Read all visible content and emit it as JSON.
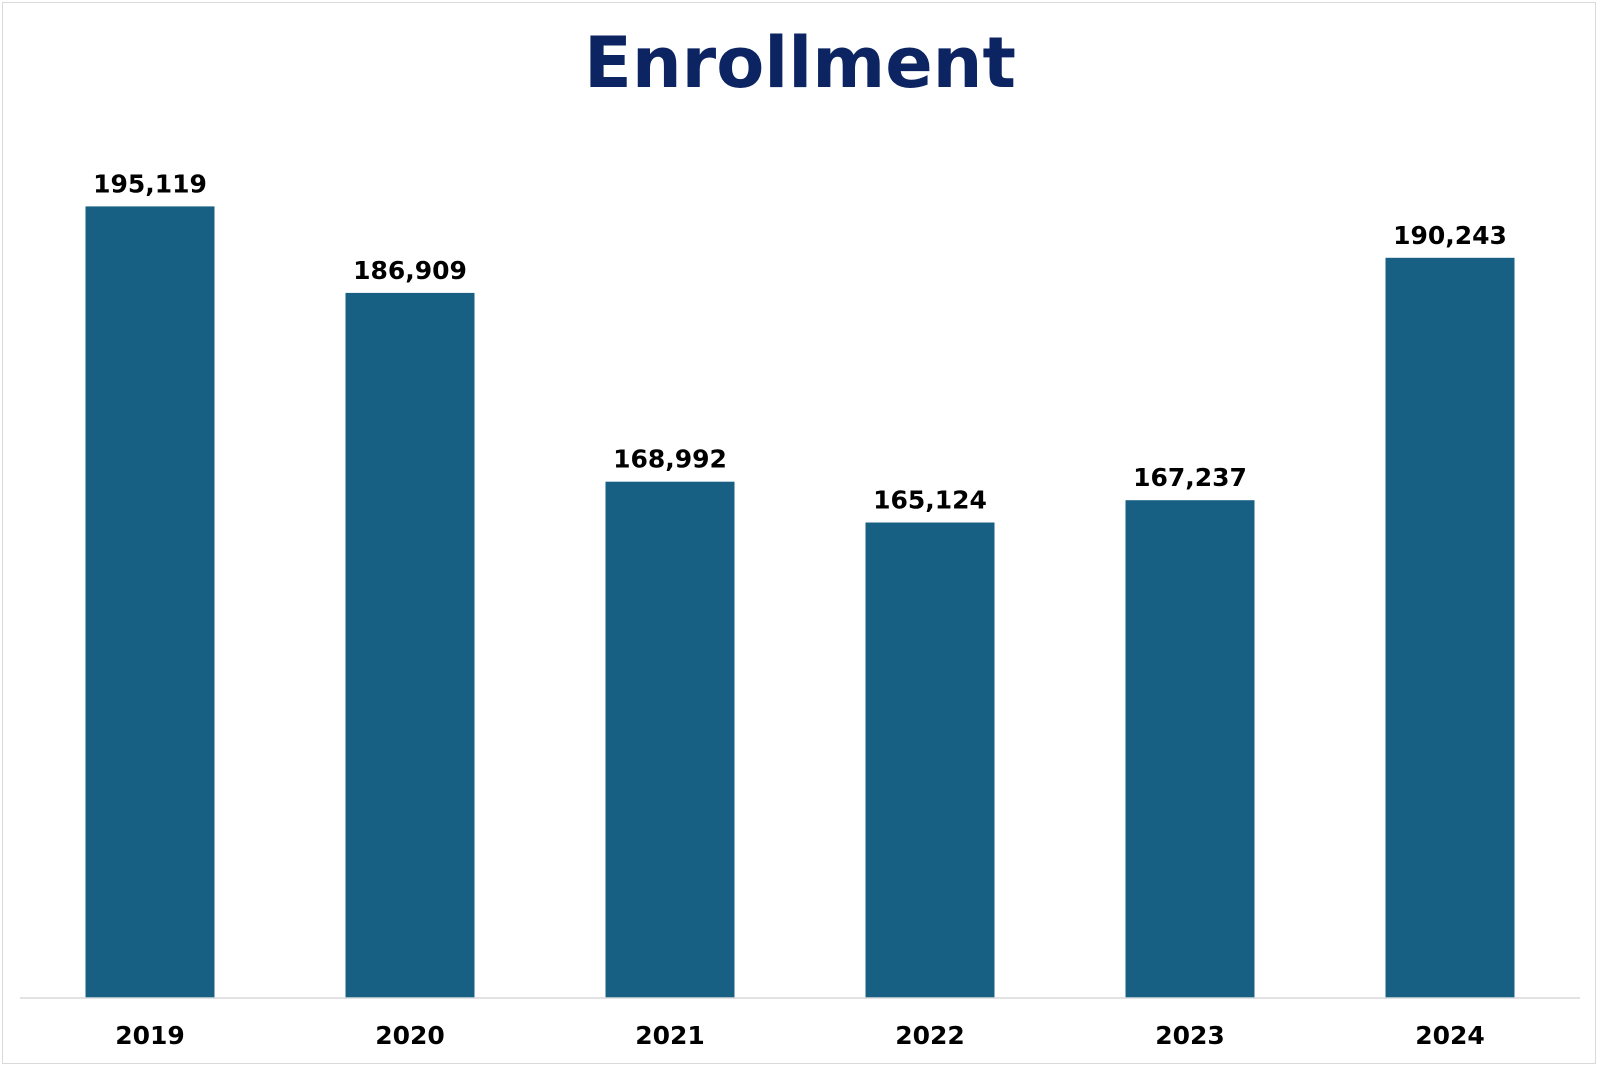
{
  "chart_data": {
    "type": "bar",
    "title": "Enrollment",
    "xlabel": "",
    "ylabel": "",
    "categories": [
      "2019",
      "2020",
      "2021",
      "2022",
      "2023",
      "2024"
    ],
    "values": [
      195119,
      186909,
      168992,
      165124,
      167237,
      190243
    ],
    "value_labels": [
      "195,119",
      "186,909",
      "168,992",
      "165,124",
      "167,237",
      "190,243"
    ],
    "ylim": [
      120000,
      200000
    ],
    "grid": false,
    "legend": "none",
    "bar_color": "#186083",
    "title_color": "#0c2461"
  }
}
